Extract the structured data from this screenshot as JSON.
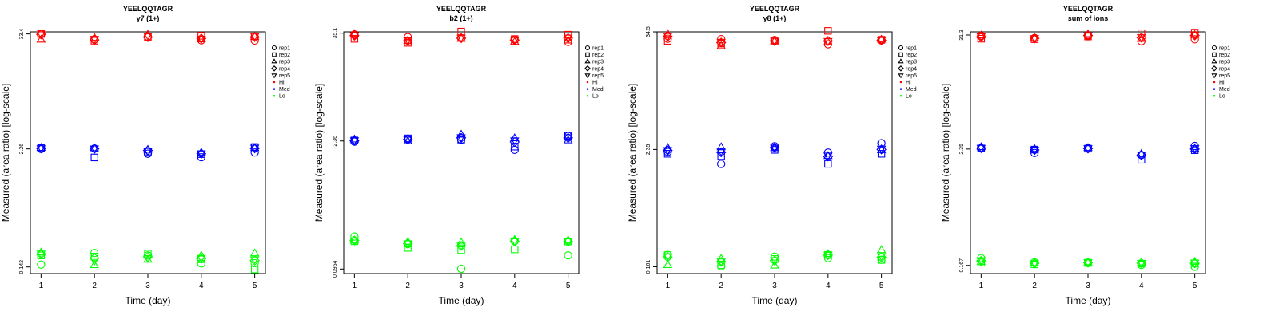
{
  "chart_data": [
    {
      "type": "scatter",
      "title": "YEELQQTAGR",
      "subtitle": "y7 (1+)",
      "xlabel": "Time (day)",
      "ylabel": "Measured (area ratio) [log-scale]",
      "x": [
        1,
        2,
        3,
        4,
        5
      ],
      "xlim": [
        0.8,
        5.2
      ],
      "yticks": [
        "0.142",
        "2.26",
        "33.4"
      ],
      "ylim_log10": [
        -0.915,
        1.545
      ],
      "series": [
        {
          "name": "rep1",
          "group": "Hi",
          "values": [
            33.4,
            29.4,
            31.4,
            28.8,
            28.6
          ]
        },
        {
          "name": "rep2",
          "group": "Hi",
          "values": [
            33.4,
            28.5,
            31.0,
            32.0,
            31.6
          ]
        },
        {
          "name": "rep3",
          "group": "Hi",
          "values": [
            29.2,
            30.4,
            32.8,
            29.4,
            31.2
          ]
        },
        {
          "name": "rep4",
          "group": "Hi",
          "values": [
            33.0,
            29.0,
            31.0,
            30.0,
            31.0
          ]
        },
        {
          "name": "rep5",
          "group": "Hi",
          "values": [
            33.2,
            29.8,
            32.2,
            29.9,
            31.8
          ]
        },
        {
          "name": "rep1",
          "group": "Med",
          "values": [
            2.26,
            2.28,
            2.02,
            1.86,
            2.08
          ]
        },
        {
          "name": "rep2",
          "group": "Med",
          "values": [
            2.3,
            1.85,
            2.12,
            2.0,
            2.36
          ]
        },
        {
          "name": "rep3",
          "group": "Med",
          "values": [
            2.31,
            2.29,
            2.21,
            2.07,
            2.3
          ]
        },
        {
          "name": "rep4",
          "group": "Med",
          "values": [
            2.29,
            2.27,
            2.18,
            2.02,
            2.29
          ]
        },
        {
          "name": "rep5",
          "group": "Med",
          "values": [
            2.3,
            2.29,
            2.16,
            2.04,
            2.33
          ]
        },
        {
          "name": "rep1",
          "group": "Lo",
          "values": [
            0.15,
            0.197,
            0.186,
            0.154,
            0.155
          ]
        },
        {
          "name": "rep2",
          "group": "Lo",
          "values": [
            0.186,
            0.181,
            0.194,
            0.17,
            0.134
          ]
        },
        {
          "name": "rep3",
          "group": "Lo",
          "values": [
            0.199,
            0.148,
            0.168,
            0.185,
            0.195
          ]
        },
        {
          "name": "rep4",
          "group": "Lo",
          "values": [
            0.192,
            0.175,
            0.18,
            0.172,
            0.165
          ]
        },
        {
          "name": "rep5",
          "group": "Lo",
          "values": [
            0.195,
            0.165,
            0.175,
            0.176,
            0.17
          ]
        }
      ]
    },
    {
      "type": "scatter",
      "title": "YEELQQTAGR",
      "subtitle": "b2 (1+)",
      "xlabel": "Time (day)",
      "ylabel": "Measured (area ratio) [log-scale]",
      "x": [
        1,
        2,
        3,
        4,
        5
      ],
      "xlim": [
        0.8,
        5.2
      ],
      "yticks": [
        "0.0954",
        "2.36",
        "35.1"
      ],
      "ylim_log10": [
        -1.07,
        1.56
      ],
      "series": [
        {
          "name": "rep1",
          "group": "Hi",
          "values": [
            34.0,
            31.8,
            31.0,
            30.0,
            28.2
          ]
        },
        {
          "name": "rep2",
          "group": "Hi",
          "values": [
            30.5,
            27.6,
            36.6,
            30.3,
            33.8
          ]
        },
        {
          "name": "rep3",
          "group": "Hi",
          "values": [
            34.4,
            28.8,
            30.4,
            28.2,
            29.2
          ]
        },
        {
          "name": "rep4",
          "group": "Hi",
          "values": [
            33.0,
            29.0,
            31.0,
            29.5,
            31.0
          ]
        },
        {
          "name": "rep5",
          "group": "Hi",
          "values": [
            33.5,
            29.5,
            31.5,
            29.8,
            31.5
          ]
        },
        {
          "name": "rep1",
          "group": "Med",
          "values": [
            2.32,
            2.46,
            2.44,
            1.89,
            2.67
          ]
        },
        {
          "name": "rep2",
          "group": "Med",
          "values": [
            2.39,
            2.52,
            2.44,
            2.05,
            2.7
          ]
        },
        {
          "name": "rep3",
          "group": "Med",
          "values": [
            2.45,
            2.34,
            2.76,
            2.52,
            2.39
          ]
        },
        {
          "name": "rep4",
          "group": "Med",
          "values": [
            2.38,
            2.45,
            2.55,
            2.3,
            2.55
          ]
        },
        {
          "name": "rep5",
          "group": "Med",
          "values": [
            2.4,
            2.45,
            2.6,
            2.4,
            2.6
          ]
        },
        {
          "name": "rep1",
          "group": "Lo",
          "values": [
            0.215,
            0.178,
            0.096,
            0.192,
            0.134
          ]
        },
        {
          "name": "rep2",
          "group": "Lo",
          "values": [
            0.191,
            0.162,
            0.153,
            0.156,
            0.19
          ]
        },
        {
          "name": "rep3",
          "group": "Lo",
          "values": [
            0.194,
            0.188,
            0.185,
            0.198,
            0.196
          ]
        },
        {
          "name": "rep4",
          "group": "Lo",
          "values": [
            0.195,
            0.18,
            0.17,
            0.19,
            0.19
          ]
        },
        {
          "name": "rep5",
          "group": "Lo",
          "values": [
            0.195,
            0.182,
            0.172,
            0.192,
            0.192
          ]
        }
      ]
    },
    {
      "type": "scatter",
      "title": "YEELQQTAGR",
      "subtitle": "y8 (1+)",
      "xlabel": "Time (day)",
      "ylabel": "Measured (area ratio) [log-scale]",
      "x": [
        1,
        2,
        3,
        4,
        5
      ],
      "xlim": [
        0.8,
        5.2
      ],
      "yticks": [
        "0.161",
        "2.35",
        "34.5"
      ],
      "ylim_log10": [
        -0.861,
        1.538
      ],
      "series": [
        {
          "name": "rep1",
          "group": "Hi",
          "values": [
            29.5,
            29.2,
            28.6,
            26.0,
            28.4
          ]
        },
        {
          "name": "rep2",
          "group": "Hi",
          "values": [
            28.1,
            26.4,
            27.7,
            35.3,
            28.8
          ]
        },
        {
          "name": "rep3",
          "group": "Hi",
          "values": [
            32.8,
            24.9,
            27.8,
            27.2,
            28.9
          ]
        },
        {
          "name": "rep4",
          "group": "Hi",
          "values": [
            31.0,
            27.0,
            28.0,
            28.0,
            28.5
          ]
        },
        {
          "name": "rep5",
          "group": "Hi",
          "values": [
            31.5,
            27.5,
            28.2,
            28.0,
            28.7
          ]
        },
        {
          "name": "rep1",
          "group": "Med",
          "values": [
            2.22,
            1.69,
            2.53,
            2.19,
            2.71
          ]
        },
        {
          "name": "rep2",
          "group": "Med",
          "values": [
            2.13,
            2.02,
            2.33,
            1.69,
            2.13
          ]
        },
        {
          "name": "rep3",
          "group": "Med",
          "values": [
            2.43,
            2.47,
            2.42,
            2.02,
            2.31
          ]
        },
        {
          "name": "rep4",
          "group": "Med",
          "values": [
            2.3,
            2.2,
            2.45,
            2.0,
            2.35
          ]
        },
        {
          "name": "rep5",
          "group": "Med",
          "values": [
            2.32,
            2.25,
            2.45,
            2.05,
            2.4
          ]
        },
        {
          "name": "rep1",
          "group": "Lo",
          "values": [
            0.211,
            0.163,
            0.203,
            0.196,
            0.189
          ]
        },
        {
          "name": "rep2",
          "group": "Lo",
          "values": [
            0.21,
            0.167,
            0.192,
            0.211,
            0.188
          ]
        },
        {
          "name": "rep3",
          "group": "Lo",
          "values": [
            0.167,
            0.193,
            0.165,
            0.215,
            0.235
          ]
        },
        {
          "name": "rep4",
          "group": "Lo",
          "values": [
            0.2,
            0.18,
            0.185,
            0.21,
            0.2
          ]
        },
        {
          "name": "rep5",
          "group": "Lo",
          "values": [
            0.205,
            0.182,
            0.188,
            0.212,
            0.205
          ]
        }
      ]
    },
    {
      "type": "scatter",
      "title": "YEELQQTAGR",
      "subtitle": "sum of ions",
      "xlabel": "Time (day)",
      "ylabel": "Measured (area ratio) [log-scale]",
      "x": [
        1,
        2,
        3,
        4,
        5
      ],
      "xlim": [
        0.8,
        5.2
      ],
      "yticks": [
        "0.167",
        "2.35",
        "31.3"
      ],
      "ylim_log10": [
        -0.858,
        1.527
      ],
      "series": [
        {
          "name": "rep1",
          "group": "Hi",
          "values": [
            30.8,
            29.2,
            30.5,
            27.2,
            28.4
          ]
        },
        {
          "name": "rep2",
          "group": "Hi",
          "values": [
            28.8,
            28.5,
            30.3,
            32.6,
            33.1
          ]
        },
        {
          "name": "rep3",
          "group": "Hi",
          "values": [
            31.0,
            29.0,
            31.8,
            28.6,
            31.3
          ]
        },
        {
          "name": "rep4",
          "group": "Hi",
          "values": [
            30.0,
            29.0,
            31.0,
            29.5,
            31.0
          ]
        },
        {
          "name": "rep5",
          "group": "Hi",
          "values": [
            30.5,
            29.2,
            31.2,
            29.8,
            31.5
          ]
        },
        {
          "name": "rep1",
          "group": "Med",
          "values": [
            2.4,
            2.15,
            2.4,
            2.05,
            2.52
          ]
        },
        {
          "name": "rep2",
          "group": "Med",
          "values": [
            2.38,
            2.32,
            2.37,
            1.84,
            2.29
          ]
        },
        {
          "name": "rep3",
          "group": "Med",
          "values": [
            2.45,
            2.35,
            2.4,
            2.1,
            2.35
          ]
        },
        {
          "name": "rep4",
          "group": "Med",
          "values": [
            2.4,
            2.3,
            2.38,
            2.05,
            2.35
          ]
        },
        {
          "name": "rep5",
          "group": "Med",
          "values": [
            2.42,
            2.32,
            2.4,
            2.08,
            2.4
          ]
        },
        {
          "name": "rep1",
          "group": "Lo",
          "values": [
            0.197,
            0.179,
            0.176,
            0.169,
            0.162
          ]
        },
        {
          "name": "rep2",
          "group": "Lo",
          "values": [
            0.179,
            0.171,
            0.177,
            0.174,
            0.175
          ]
        },
        {
          "name": "rep3",
          "group": "Lo",
          "values": [
            0.181,
            0.175,
            0.178,
            0.178,
            0.181
          ]
        },
        {
          "name": "rep4",
          "group": "Lo",
          "values": [
            0.185,
            0.175,
            0.178,
            0.176,
            0.175
          ]
        },
        {
          "name": "rep5",
          "group": "Lo",
          "values": [
            0.188,
            0.176,
            0.18,
            0.177,
            0.178
          ]
        }
      ]
    }
  ],
  "legend": {
    "items": [
      {
        "label": "rep1",
        "kind": "shape",
        "shape": "circle"
      },
      {
        "label": "rep2",
        "kind": "shape",
        "shape": "square"
      },
      {
        "label": "rep3",
        "kind": "shape",
        "shape": "triangle-up"
      },
      {
        "label": "rep4",
        "kind": "shape",
        "shape": "diamond"
      },
      {
        "label": "rep5",
        "kind": "shape",
        "shape": "triangle-down"
      },
      {
        "label": "Hi",
        "kind": "color",
        "group": "Hi"
      },
      {
        "label": "Med",
        "kind": "color",
        "group": "Med"
      },
      {
        "label": "Lo",
        "kind": "color",
        "group": "Lo"
      }
    ]
  },
  "shapes": {
    "rep1": "circle",
    "rep2": "square",
    "rep3": "triangle-up",
    "rep4": "diamond",
    "rep5": "triangle-down"
  },
  "colors": {
    "Hi": "#ff0000",
    "Med": "#0000ff",
    "Lo": "#00ff00"
  }
}
